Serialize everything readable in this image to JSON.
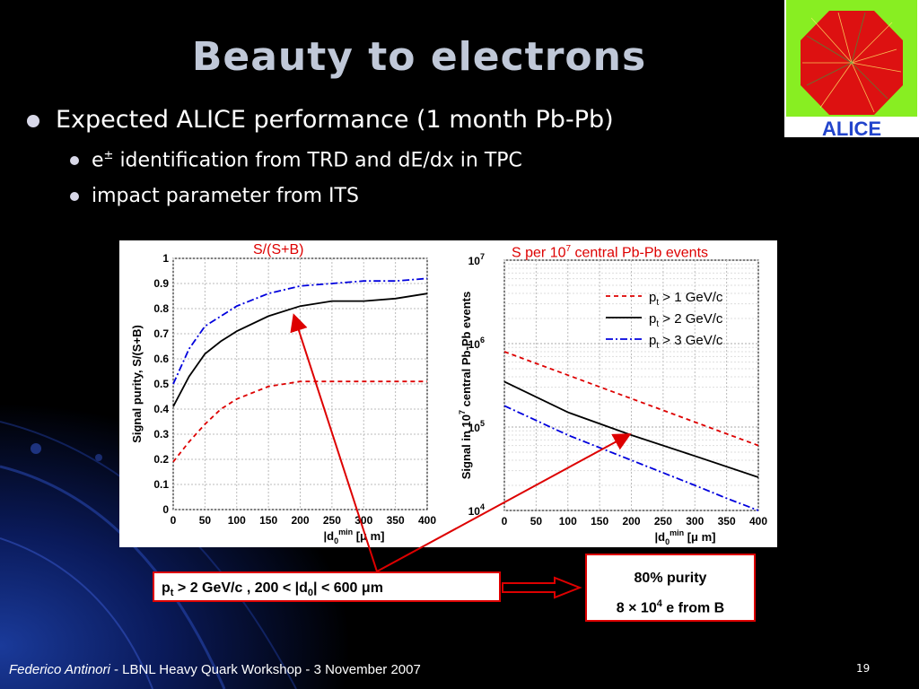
{
  "slide": {
    "title": "Beauty to electrons",
    "bullets": [
      {
        "text": "Expected ALICE performance (1 month Pb-Pb)"
      },
      {
        "sup": "±",
        "text": " identification from TRD and dE/dx in TPC",
        "prefix": "e"
      },
      {
        "text": "impact parameter from ITS"
      }
    ],
    "logo_text": "ALICE",
    "footer": {
      "author": "Federico Antinori",
      "event": " - LBNL Heavy Quark Workshop - 3 November 2007"
    },
    "page_number": "19"
  },
  "annotations": {
    "condition": {
      "p": "p",
      "t": "t",
      "mid": " > 2 GeV/c ,  200  < |d",
      "zero": "0",
      "end": "| < 600 ",
      "mu": "μ",
      "m": "m"
    },
    "result_line1": "80% purity",
    "result_line2_pre": "8 × 10",
    "result_line2_sup": "4",
    "result_line2_post": " e from B"
  },
  "colors": {
    "red": "#dd0000",
    "blue": "#0000dd",
    "black": "#000000"
  },
  "chart_data": [
    {
      "type": "line",
      "title": "S/(S+B)",
      "xlabel": "|d0|min [μ m]",
      "ylabel": "Signal purity, S/(S+B)",
      "xlim": [
        0,
        400
      ],
      "ylim": [
        0,
        1
      ],
      "xticks": [
        0,
        50,
        100,
        150,
        200,
        250,
        300,
        350,
        400
      ],
      "yticks": [
        0,
        0.1,
        0.2,
        0.3,
        0.4,
        0.5,
        0.6,
        0.7,
        0.8,
        0.9,
        1
      ],
      "grid": true,
      "series": [
        {
          "color": "#dd0000",
          "dash": "5,4",
          "x": [
            0,
            25,
            50,
            75,
            100,
            150,
            200,
            250,
            300,
            350,
            400
          ],
          "y": [
            0.19,
            0.27,
            0.34,
            0.4,
            0.44,
            0.49,
            0.51,
            0.51,
            0.51,
            0.51,
            0.51
          ]
        },
        {
          "color": "#000000",
          "dash": "",
          "x": [
            0,
            25,
            50,
            75,
            100,
            150,
            200,
            250,
            300,
            350,
            400
          ],
          "y": [
            0.41,
            0.53,
            0.62,
            0.67,
            0.71,
            0.77,
            0.81,
            0.83,
            0.83,
            0.84,
            0.86
          ]
        },
        {
          "color": "#0000dd",
          "dash": "8,3,2,3",
          "x": [
            0,
            25,
            50,
            75,
            100,
            150,
            200,
            250,
            300,
            350,
            400
          ],
          "y": [
            0.5,
            0.64,
            0.73,
            0.77,
            0.81,
            0.86,
            0.89,
            0.9,
            0.91,
            0.91,
            0.92
          ]
        }
      ]
    },
    {
      "type": "line",
      "title": "S per 10",
      "title_sup": "7",
      "title_post": " central Pb-Pb events",
      "xlabel": "|d0|min [μ m]",
      "ylabel": "Signal in 10^7 central Pb-Pb events",
      "xlim": [
        0,
        400
      ],
      "ylim": [
        10000,
        10000000
      ],
      "log_y": true,
      "xticks": [
        0,
        50,
        100,
        150,
        200,
        250,
        300,
        350,
        400
      ],
      "ytick_labels": [
        "10",
        "10",
        "10",
        "10"
      ],
      "ytick_sups": [
        "7",
        "6",
        "5",
        "4"
      ],
      "grid": true,
      "legend_placement": "top-right",
      "series": [
        {
          "name": "pt > 1 GeV/c",
          "color": "#dd0000",
          "dash": "5,4",
          "x": [
            0,
            400
          ],
          "y": [
            800000,
            60000
          ]
        },
        {
          "name": "pt > 2 GeV/c",
          "color": "#000000",
          "dash": "",
          "x": [
            0,
            100,
            200,
            300,
            400
          ],
          "y": [
            350000,
            150000,
            80000,
            45000,
            25000
          ]
        },
        {
          "name": "pt > 3 GeV/c",
          "color": "#0000dd",
          "dash": "8,3,2,3",
          "x": [
            0,
            100,
            200,
            300,
            350,
            400
          ],
          "y": [
            180000,
            80000,
            40000,
            20000,
            14000,
            10000
          ]
        }
      ]
    }
  ]
}
